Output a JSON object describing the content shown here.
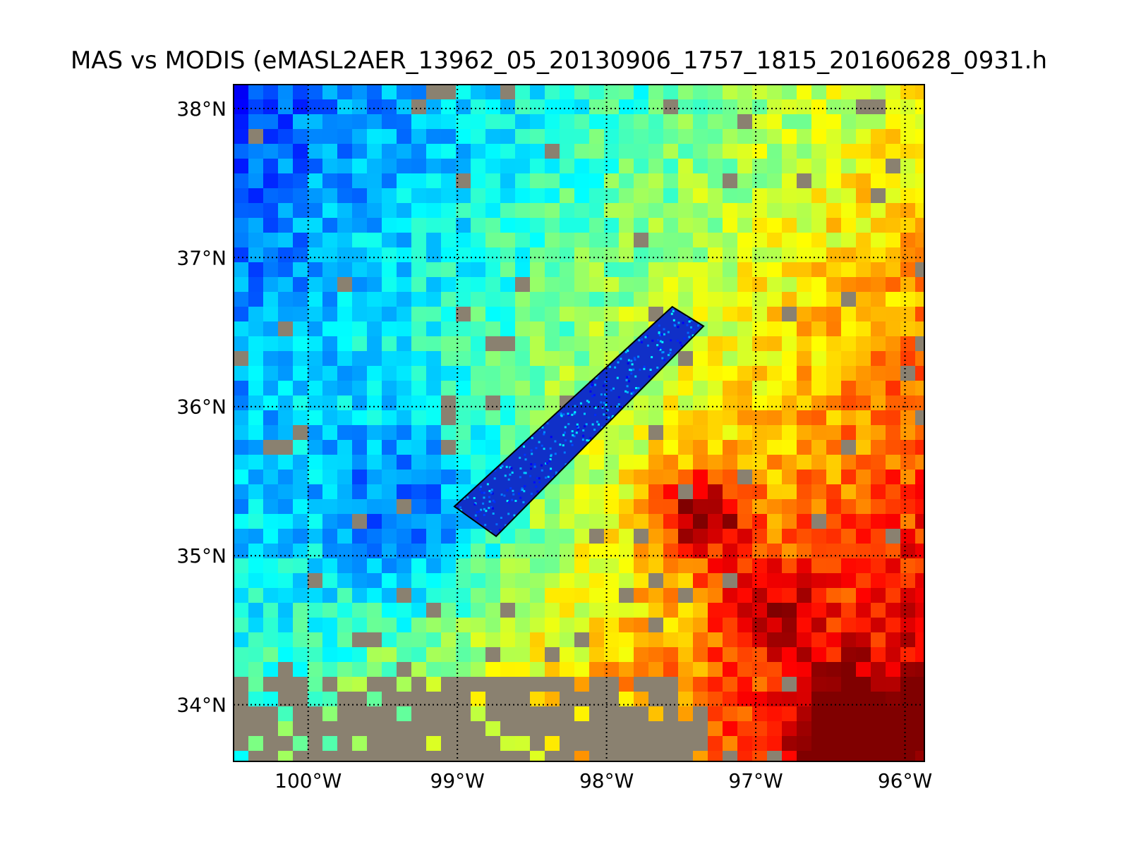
{
  "title": "MAS vs MODIS (eMASL2AER_13962_05_20130906_1757_1815_20160628_0931.h",
  "map": {
    "lon_range": [
      -100.5,
      -95.87
    ],
    "lat_range": [
      33.62,
      38.16
    ],
    "lat_ticks": [
      {
        "value": 38,
        "label": "38°N"
      },
      {
        "value": 37,
        "label": "37°N"
      },
      {
        "value": 36,
        "label": "36°N"
      },
      {
        "value": 35,
        "label": "35°N"
      },
      {
        "value": 34,
        "label": "34°N"
      }
    ],
    "lon_ticks": [
      {
        "value": -100,
        "label": "100°W"
      },
      {
        "value": -99,
        "label": "99°W"
      },
      {
        "value": -98,
        "label": "98°W"
      },
      {
        "value": -97,
        "label": "97°W"
      },
      {
        "value": -96,
        "label": "96°W"
      }
    ],
    "gridlines": "dotted",
    "swath_corners": [
      [
        -99.02,
        35.33
      ],
      [
        -97.56,
        36.67
      ],
      [
        -97.35,
        36.54
      ],
      [
        -98.74,
        35.13
      ]
    ],
    "colors": {
      "no_data_gray": "#8a8170",
      "colormap": "jet",
      "frame": "#000000"
    }
  }
}
